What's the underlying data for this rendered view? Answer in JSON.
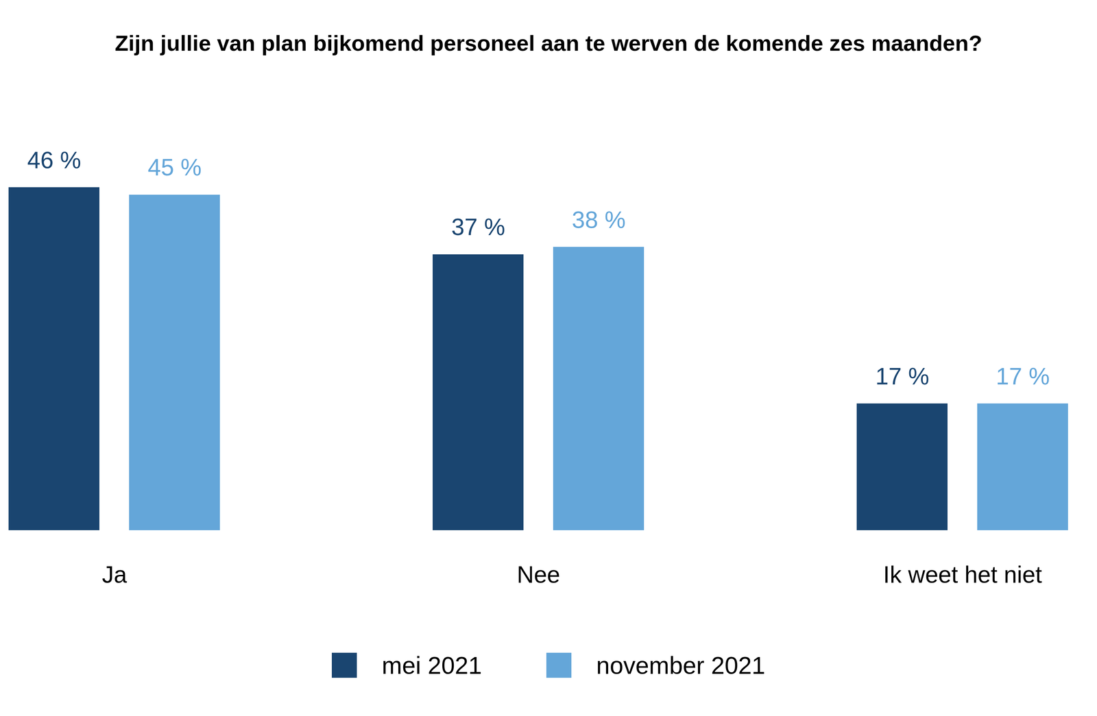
{
  "chart_data": {
    "type": "bar",
    "title": "Zijn jullie van plan bijkomend personeel aan te werven de komende zes maanden?",
    "categories": [
      "Ja",
      "Nee",
      "Ik weet het niet"
    ],
    "series": [
      {
        "name": "mei 2021",
        "color": "#1a4570",
        "values": [
          46,
          37,
          17
        ],
        "value_labels": [
          "46 %",
          "37 %",
          "17 %"
        ]
      },
      {
        "name": "november 2021",
        "color": "#64a6d9",
        "values": [
          45,
          38,
          17
        ],
        "value_labels": [
          "45 %",
          "38 %",
          "17 %"
        ]
      }
    ],
    "ylim": [
      0,
      46
    ],
    "data_labels": true,
    "tick_labels": "x",
    "legend": "bottom",
    "grid": false
  }
}
